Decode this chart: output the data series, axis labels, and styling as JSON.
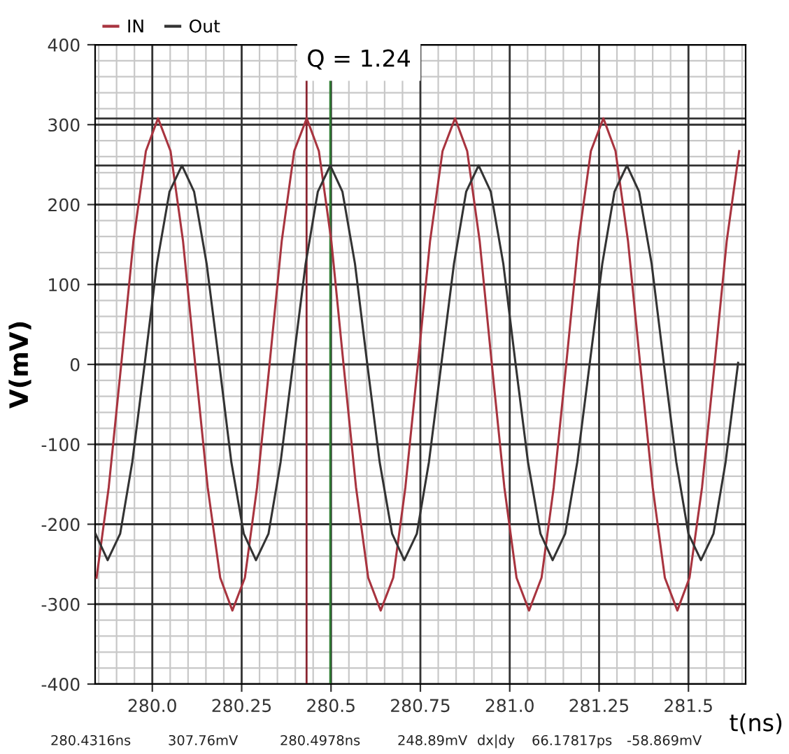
{
  "chart_data": {
    "type": "line",
    "xlabel": "t(ns)",
    "ylabel": "V(mV)",
    "xlim": [
      279.84,
      281.66
    ],
    "ylim": [
      -400,
      400
    ],
    "xticks": [
      {
        "value": 280,
        "label": "280.0"
      },
      280.25,
      {
        "value": 280.5,
        "label": "280.5"
      },
      280.75,
      {
        "value": 281,
        "label": "281.0"
      },
      281.25,
      {
        "value": 281.5,
        "label": "281.5"
      }
    ],
    "yticks": [
      -400,
      -300,
      -200,
      -100,
      0,
      100,
      200,
      300,
      400
    ],
    "grid": true,
    "legend": "top left",
    "marker": "none",
    "line_style": "solid",
    "series": [
      {
        "name": "IN",
        "color": "#a8343f",
        "x": [
          279.844,
          279.878,
          279.913,
          279.947,
          279.982,
          280.016,
          280.051,
          280.086,
          280.12,
          280.155,
          280.19,
          280.224,
          280.259,
          280.293,
          280.328,
          280.362,
          280.397,
          280.432,
          280.466,
          280.501,
          280.535,
          280.57,
          280.604,
          280.639,
          280.674,
          280.708,
          280.743,
          280.777,
          280.812,
          280.847,
          280.881,
          280.916,
          280.95,
          280.985,
          281.019,
          281.054,
          281.089,
          281.123,
          281.158,
          281.192,
          281.227,
          281.262,
          281.296,
          281.331,
          281.365,
          281.4,
          281.434,
          281.469,
          281.503,
          281.538,
          281.573,
          281.607,
          281.642
        ],
        "values": [
          -267,
          -154,
          0,
          154,
          267,
          308,
          267,
          154,
          0,
          -154,
          -267,
          -308,
          -267,
          -154,
          0,
          154,
          267,
          308,
          267,
          154,
          0,
          -154,
          -267,
          -308,
          -267,
          -154,
          0,
          154,
          267,
          308,
          267,
          154,
          0,
          -154,
          -267,
          -308,
          -267,
          -154,
          0,
          154,
          267,
          308,
          267,
          154,
          0,
          -154,
          -267,
          -308,
          -267,
          -154,
          0,
          154,
          267
        ]
      },
      {
        "name": "Out",
        "color": "#333333",
        "x": [
          279.841,
          279.875,
          279.91,
          279.944,
          279.979,
          280.013,
          280.048,
          280.083,
          280.117,
          280.152,
          280.187,
          280.221,
          280.256,
          280.29,
          280.325,
          280.359,
          280.394,
          280.429,
          280.463,
          280.498,
          280.532,
          280.567,
          280.601,
          280.636,
          280.671,
          280.705,
          280.74,
          280.774,
          280.809,
          280.844,
          280.878,
          280.913,
          280.947,
          280.982,
          281.016,
          281.051,
          281.086,
          281.12,
          281.155,
          281.189,
          281.224,
          281.259,
          281.293,
          281.328,
          281.362,
          281.397,
          281.431,
          281.466,
          281.5,
          281.535,
          281.57,
          281.604,
          281.639
        ],
        "values": [
          -212,
          -245,
          -212,
          -122,
          2,
          126,
          216,
          249,
          216,
          126,
          2,
          -122,
          -212,
          -245,
          -212,
          -122,
          2,
          126,
          216,
          249,
          216,
          126,
          2,
          -122,
          -212,
          -245,
          -212,
          -122,
          2,
          126,
          216,
          249,
          216,
          126,
          2,
          -122,
          -212,
          -245,
          -212,
          -122,
          2,
          126,
          216,
          249,
          216,
          126,
          2,
          -122,
          -212,
          -245,
          -212,
          -122,
          2
        ]
      }
    ],
    "ref_lines": [
      {
        "axis": "y",
        "value": 307.76,
        "color": "#333333"
      },
      {
        "axis": "y",
        "value": 248.89,
        "color": "#333333"
      },
      {
        "axis": "x",
        "value": 280.4316,
        "color": "#8a2530"
      },
      {
        "axis": "x",
        "value": 280.4978,
        "color": "#2e7d32"
      }
    ],
    "annotations": [
      {
        "text": "Q = 1.24",
        "x": 280.4316,
        "y": 307.76
      },
      "280.4316ns",
      "307.76mV",
      "280.4978ns",
      "248.89mV",
      "dx|dy",
      "66.17817ps",
      "-58.869mV"
    ]
  }
}
